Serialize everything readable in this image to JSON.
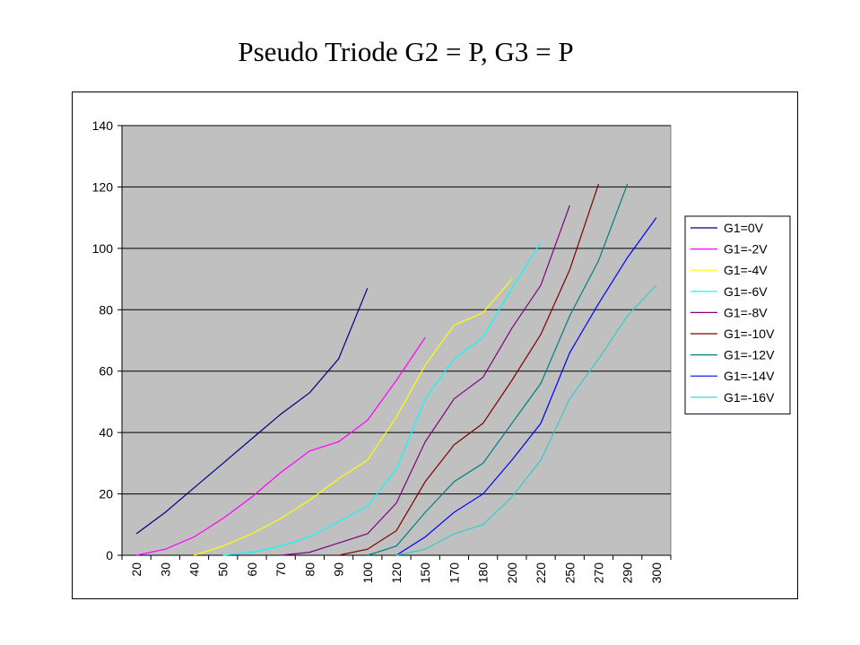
{
  "chart_data": {
    "type": "line",
    "title": "Pseudo Triode G2 = P, G3 = P",
    "xlabel": "",
    "ylabel": "",
    "categories": [
      "20",
      "30",
      "40",
      "50",
      "60",
      "70",
      "80",
      "90",
      "100",
      "120",
      "150",
      "170",
      "180",
      "200",
      "220",
      "250",
      "270",
      "290",
      "300"
    ],
    "ylim": [
      0,
      140
    ],
    "yticks": [
      0,
      20,
      40,
      60,
      80,
      100,
      120,
      140
    ],
    "grid": true,
    "legend": "right",
    "plot_background": "#c0c0c0",
    "series": [
      {
        "name": "G1=0V",
        "color": "#000080",
        "values": [
          7,
          14,
          22,
          30,
          38,
          46,
          53,
          64,
          87,
          null,
          null,
          null,
          null,
          null,
          null,
          null,
          null,
          null,
          null
        ]
      },
      {
        "name": "G1=-2V",
        "color": "#ff00ff",
        "values": [
          0,
          2,
          6,
          12,
          19,
          27,
          34,
          37,
          44,
          57,
          71,
          null,
          null,
          null,
          null,
          null,
          null,
          null,
          null
        ]
      },
      {
        "name": "G1=-4V",
        "color": "#ffff00",
        "values": [
          null,
          null,
          0,
          3,
          7,
          12,
          18,
          25,
          31,
          45,
          62,
          75,
          79,
          90,
          null,
          null,
          null,
          null,
          null
        ]
      },
      {
        "name": "G1=-6V",
        "color": "#00ffff",
        "values": [
          null,
          null,
          null,
          0,
          1,
          3,
          6,
          11,
          16,
          28,
          51,
          64,
          71,
          87,
          102,
          null,
          null,
          null,
          null
        ]
      },
      {
        "name": "G1=-8V",
        "color": "#800080",
        "values": [
          null,
          null,
          null,
          null,
          null,
          0,
          1,
          4,
          7,
          17,
          37,
          51,
          58,
          74,
          88,
          114,
          null,
          null,
          null
        ]
      },
      {
        "name": "G1=-10V",
        "color": "#800000",
        "values": [
          null,
          null,
          null,
          null,
          null,
          null,
          null,
          0,
          2,
          8,
          24,
          36,
          43,
          57,
          72,
          93,
          121,
          null,
          null
        ]
      },
      {
        "name": "G1=-12V",
        "color": "#008080",
        "values": [
          null,
          null,
          null,
          null,
          null,
          null,
          null,
          null,
          0,
          3,
          14,
          24,
          30,
          43,
          56,
          78,
          96,
          121,
          null
        ]
      },
      {
        "name": "G1=-14V",
        "color": "#0000ff",
        "values": [
          null,
          null,
          null,
          null,
          null,
          null,
          null,
          null,
          null,
          0,
          6,
          14,
          20,
          31,
          43,
          66,
          82,
          97,
          110
        ]
      },
      {
        "name": "G1=-16V",
        "color": "#33cccc",
        "values": [
          null,
          null,
          null,
          null,
          null,
          null,
          null,
          null,
          null,
          0,
          2,
          7,
          10,
          19,
          31,
          51,
          64,
          78,
          88
        ]
      }
    ]
  }
}
